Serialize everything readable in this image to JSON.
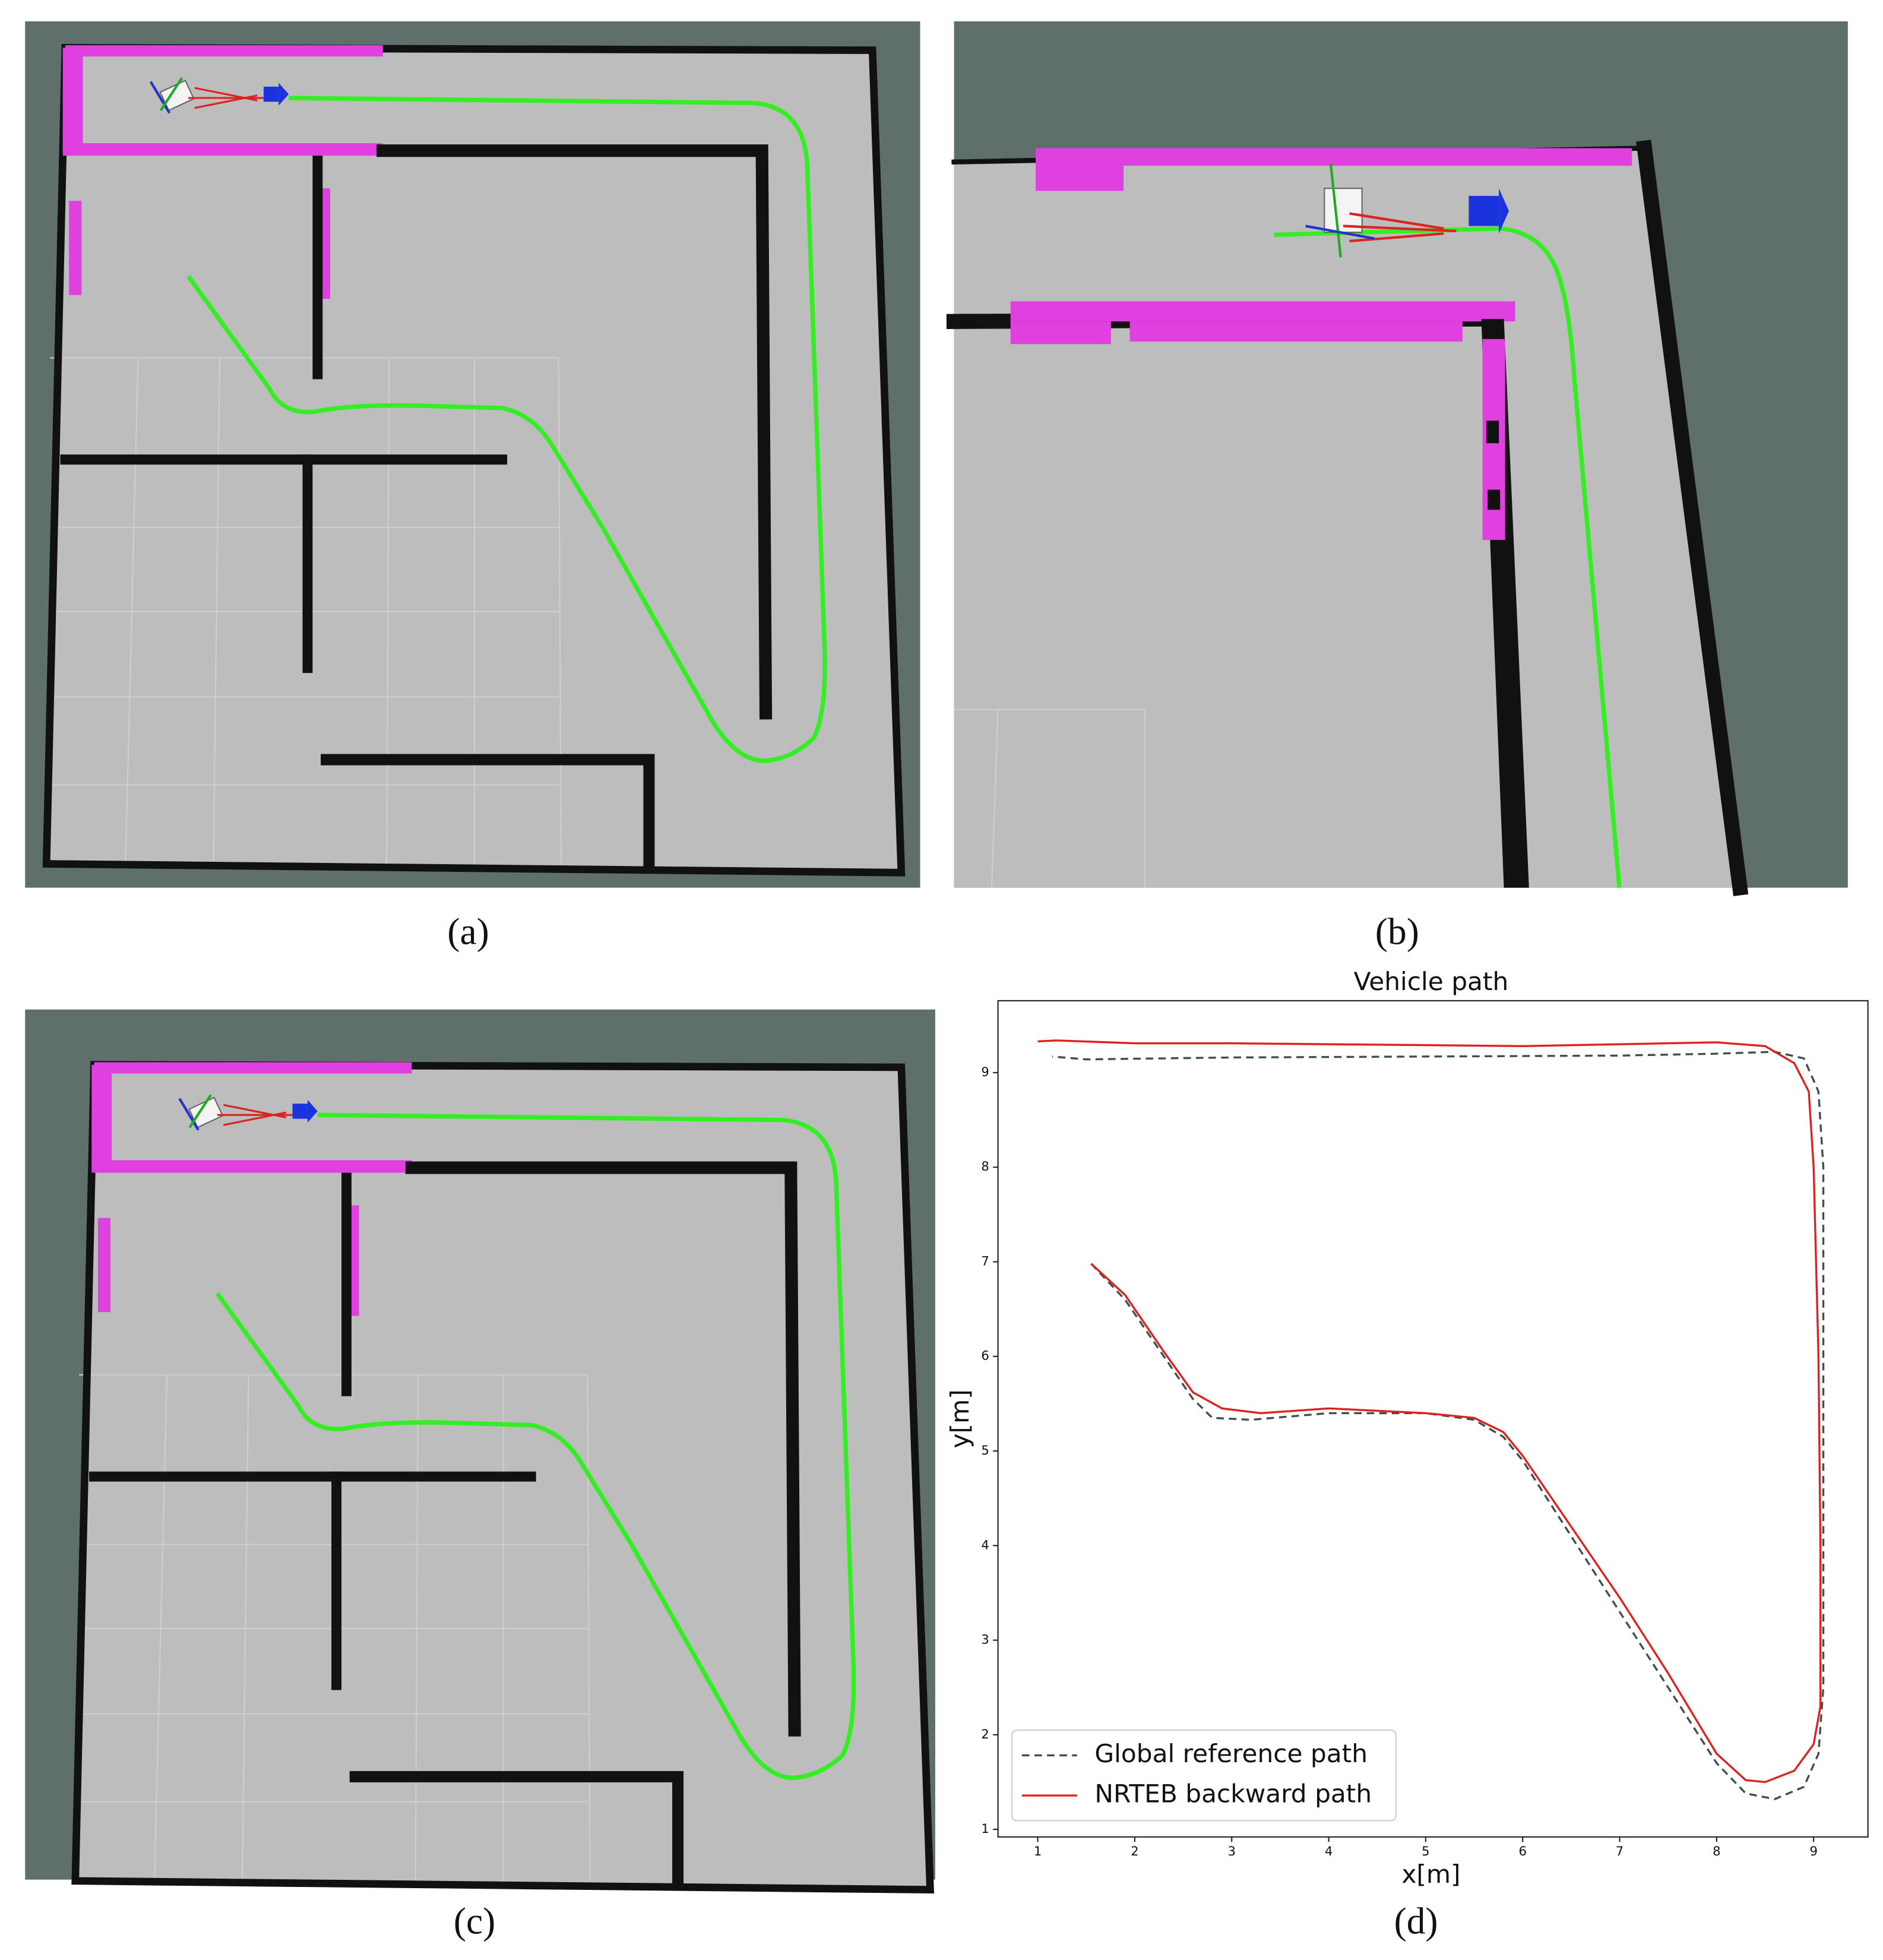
{
  "labels": {
    "a": "(a)",
    "b": "(b)",
    "c": "(c)",
    "d": "(d)"
  },
  "chart_data": {
    "type": "line",
    "title": "Vehicle path",
    "xlabel": "x[m]",
    "ylabel": "y[m]",
    "xlim": [
      0.59,
      9.56
    ],
    "ylim": [
      0.92,
      9.76
    ],
    "xticks": [
      1,
      2,
      3,
      4,
      5,
      6,
      7,
      8,
      9
    ],
    "yticks": [
      1,
      2,
      3,
      4,
      5,
      6,
      7,
      8,
      9
    ],
    "legend": "lower left",
    "series": [
      {
        "name": "Global reference path",
        "color": "#3d5050",
        "linestyle": "dashed",
        "x": [
          1.55,
          1.9,
          2.3,
          2.6,
          2.8,
          3.2,
          4,
          5,
          5.5,
          5.8,
          6.0,
          6.5,
          7,
          7.5,
          8,
          8.3,
          8.6,
          8.9,
          9.05,
          9.1,
          9.1,
          9.1,
          9.1,
          9.05,
          8.9,
          8.6,
          8,
          7,
          5,
          3,
          1.5,
          1.15
        ],
        "values": [
          6.98,
          6.6,
          6.0,
          5.55,
          5.35,
          5.33,
          5.4,
          5.4,
          5.33,
          5.15,
          4.9,
          4.1,
          3.3,
          2.5,
          1.7,
          1.38,
          1.32,
          1.45,
          1.8,
          2.5,
          4,
          6,
          8,
          8.8,
          9.15,
          9.22,
          9.2,
          9.18,
          9.17,
          9.16,
          9.14,
          9.17
        ]
      },
      {
        "name": "NRTEB backward path",
        "color": "#e02020",
        "linestyle": "solid",
        "x": [
          1.55,
          1.9,
          2.3,
          2.6,
          2.9,
          3.3,
          4,
          5,
          5.5,
          5.8,
          6.0,
          6.5,
          7,
          7.5,
          8,
          8.3,
          8.5,
          8.8,
          9.0,
          9.07,
          9.07,
          9.05,
          9.0,
          8.95,
          8.8,
          8.5,
          8,
          7,
          6,
          5,
          4,
          3,
          2,
          1.2,
          1
        ],
        "values": [
          6.98,
          6.65,
          6.05,
          5.62,
          5.45,
          5.4,
          5.45,
          5.4,
          5.35,
          5.2,
          4.95,
          4.2,
          3.45,
          2.65,
          1.8,
          1.52,
          1.5,
          1.62,
          1.9,
          2.3,
          4,
          6,
          8,
          8.8,
          9.1,
          9.28,
          9.32,
          9.3,
          9.28,
          9.29,
          9.3,
          9.31,
          9.31,
          9.34,
          9.33
        ]
      }
    ]
  }
}
